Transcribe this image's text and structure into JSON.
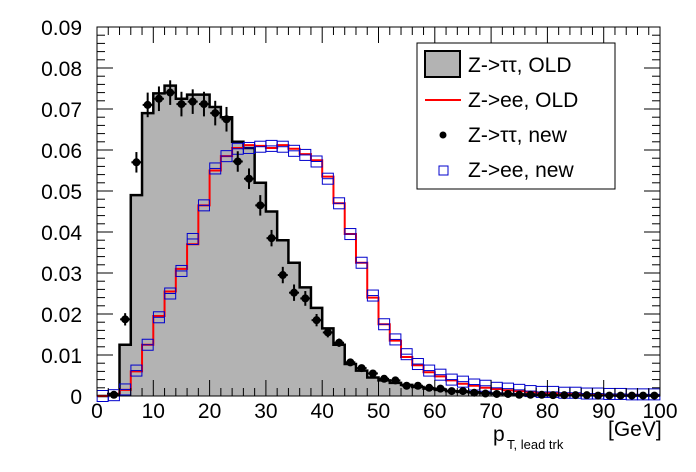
{
  "chart_data": {
    "type": "histogram",
    "title": "",
    "xlabel_main": "p",
    "xlabel_sub": "T, lead trk",
    "xlabel_unit": "[GeV]",
    "ylabel": "",
    "xlim": [
      0,
      100
    ],
    "ylim": [
      0,
      0.09
    ],
    "bin_width": 2,
    "x_ticks": [
      "0",
      "10",
      "20",
      "30",
      "40",
      "50",
      "60",
      "70",
      "80",
      "90",
      "100"
    ],
    "x_tick_values": [
      0,
      10,
      20,
      30,
      40,
      50,
      60,
      70,
      80,
      90,
      100
    ],
    "y_ticks": [
      "0",
      "0.01",
      "0.02",
      "0.03",
      "0.04",
      "0.05",
      "0.06",
      "0.07",
      "0.08",
      "0.09"
    ],
    "y_tick_values": [
      0,
      0.01,
      0.02,
      0.03,
      0.04,
      0.05,
      0.06,
      0.07,
      0.08,
      0.09
    ],
    "legend_position": "top-right",
    "series": [
      {
        "name": "Z->ττ, OLD",
        "style": "filled-histogram",
        "fill": "#b3b3b3",
        "line": "#000000",
        "values": [
          0,
          0.0005,
          0.0125,
          0.049,
          0.069,
          0.0738,
          0.0757,
          0.0725,
          0.0735,
          0.0735,
          0.0705,
          0.068,
          0.062,
          0.0605,
          0.052,
          0.045,
          0.038,
          0.0325,
          0.0265,
          0.0215,
          0.0165,
          0.0125,
          0.0078,
          0.0062,
          0.0045,
          0.0038,
          0.0032,
          0.0027,
          0.0022,
          0.0018,
          0.0015,
          0.0012,
          0.001,
          0.0009,
          0.0007,
          0.0006,
          0.0005,
          0.0004,
          0.0004,
          0.0003,
          0.0003,
          0.0003,
          0.0002,
          0.0002,
          0.0002,
          0.0002,
          0.0001,
          0.0001,
          0.0001,
          0.0001
        ]
      },
      {
        "name": "Z->ee, OLD",
        "style": "line-histogram",
        "line": "#ff0000",
        "values": [
          0,
          0.0002,
          0.0015,
          0.006,
          0.0125,
          0.0195,
          0.0255,
          0.031,
          0.037,
          0.0465,
          0.055,
          0.0585,
          0.0605,
          0.0612,
          0.061,
          0.0605,
          0.0612,
          0.0603,
          0.059,
          0.0575,
          0.0535,
          0.047,
          0.0395,
          0.0325,
          0.024,
          0.0175,
          0.0135,
          0.0095,
          0.0075,
          0.0058,
          0.0048,
          0.0038,
          0.003,
          0.0025,
          0.002,
          0.0017,
          0.0014,
          0.0012,
          0.001,
          0.0008,
          0.0007,
          0.0006,
          0.0005,
          0.0004,
          0.0004,
          0.0003,
          0.0003,
          0.0003,
          0.0002,
          0.0002
        ]
      },
      {
        "name": "Z->ττ, new",
        "style": "markers-errorbars",
        "marker": "circle",
        "color": "#000000",
        "values": [
          0,
          0.0003,
          0.0187,
          0.057,
          0.071,
          0.0725,
          0.074,
          0.0712,
          0.0718,
          0.0712,
          0.069,
          0.0675,
          0.0572,
          0.053,
          0.0465,
          0.0385,
          0.0295,
          0.0252,
          0.0238,
          0.0185,
          0.0155,
          0.013,
          0.0082,
          0.0068,
          0.0055,
          0.0042,
          0.0038,
          0.0025,
          0.0025,
          0.002,
          0.0018,
          0.0012,
          0.0012,
          0.0008,
          0.0006,
          0.0005,
          0.0005,
          0.0003,
          0.0003,
          0.0003,
          0.0002,
          0.0002,
          0.0002,
          0.0002,
          0.0001,
          0.0001,
          0.0001,
          0.0001,
          0.0001,
          0.0001
        ],
        "errors": [
          0,
          0.0005,
          0.0015,
          0.0025,
          0.003,
          0.003,
          0.003,
          0.003,
          0.003,
          0.003,
          0.003,
          0.003,
          0.0025,
          0.0025,
          0.0025,
          0.002,
          0.002,
          0.002,
          0.0018,
          0.0015,
          0.0012,
          0.001,
          0.0008,
          0.0007,
          0.0006,
          0.0005,
          0.0005,
          0.0004,
          0.0004,
          0.0003,
          0.0003,
          0.0003,
          0.0002,
          0.0002,
          0.0002,
          0.0002,
          0.0002,
          0.0001,
          0.0001,
          0.0001,
          0.0001,
          0.0001,
          0.0001,
          0.0001,
          0.0001,
          0.0001,
          0.0001,
          0.0001,
          0.0001,
          0.0001
        ]
      },
      {
        "name": "Z->ee, new",
        "style": "markers",
        "marker": "open-square",
        "color": "#0000cc",
        "values": [
          0,
          0.0002,
          0.0016,
          0.0062,
          0.0125,
          0.0192,
          0.025,
          0.0305,
          0.0383,
          0.0465,
          0.0555,
          0.0585,
          0.0603,
          0.0605,
          0.0608,
          0.061,
          0.0608,
          0.0598,
          0.0588,
          0.0572,
          0.053,
          0.047,
          0.0395,
          0.0325,
          0.0245,
          0.0175,
          0.0138,
          0.0102,
          0.0078,
          0.0062,
          0.0052,
          0.004,
          0.0035,
          0.0028,
          0.0025,
          0.002,
          0.0018,
          0.0015,
          0.0012,
          0.001,
          0.001,
          0.0008,
          0.0008,
          0.0006,
          0.0006,
          0.0005,
          0.0005,
          0.0004,
          0.0004,
          0.0004
        ]
      }
    ]
  }
}
